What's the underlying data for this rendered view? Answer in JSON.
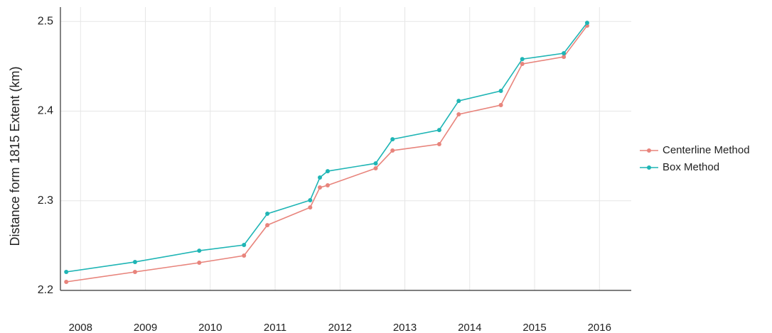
{
  "chart_data": {
    "type": "line",
    "y_label": "Distance form 1815 Extent (km)",
    "x": [
      2007.78,
      2008.84,
      2009.83,
      2010.52,
      2010.88,
      2011.54,
      2011.69,
      2011.81,
      2012.55,
      2012.81,
      2013.53,
      2013.83,
      2014.48,
      2014.81,
      2015.45,
      2015.81
    ],
    "series": [
      {
        "name": "Centerline Method",
        "color": "#e8847c",
        "values": [
          2.2095,
          2.2206,
          2.2309,
          2.2388,
          2.2728,
          2.2926,
          2.3148,
          2.3172,
          2.3362,
          2.356,
          2.3631,
          2.3964,
          2.4067,
          2.4526,
          2.4605,
          2.4953
        ]
      },
      {
        "name": "Box Method",
        "color": "#1fb5b5",
        "values": [
          2.2206,
          2.2317,
          2.2443,
          2.2507,
          2.2855,
          2.3006,
          2.3259,
          2.333,
          2.3417,
          2.3686,
          2.3789,
          2.4114,
          2.4225,
          2.458,
          2.4645,
          2.4985
        ]
      }
    ],
    "xlim": [
      2007.69,
      2016.49
    ],
    "xticks": [
      2008,
      2009,
      2010,
      2011,
      2012,
      2013,
      2014,
      2015,
      2016
    ],
    "ylim": [
      2.2,
      2.516
    ],
    "yticks": [
      2.2,
      2.3,
      2.4,
      2.5
    ],
    "grid": true,
    "legend": "right"
  }
}
